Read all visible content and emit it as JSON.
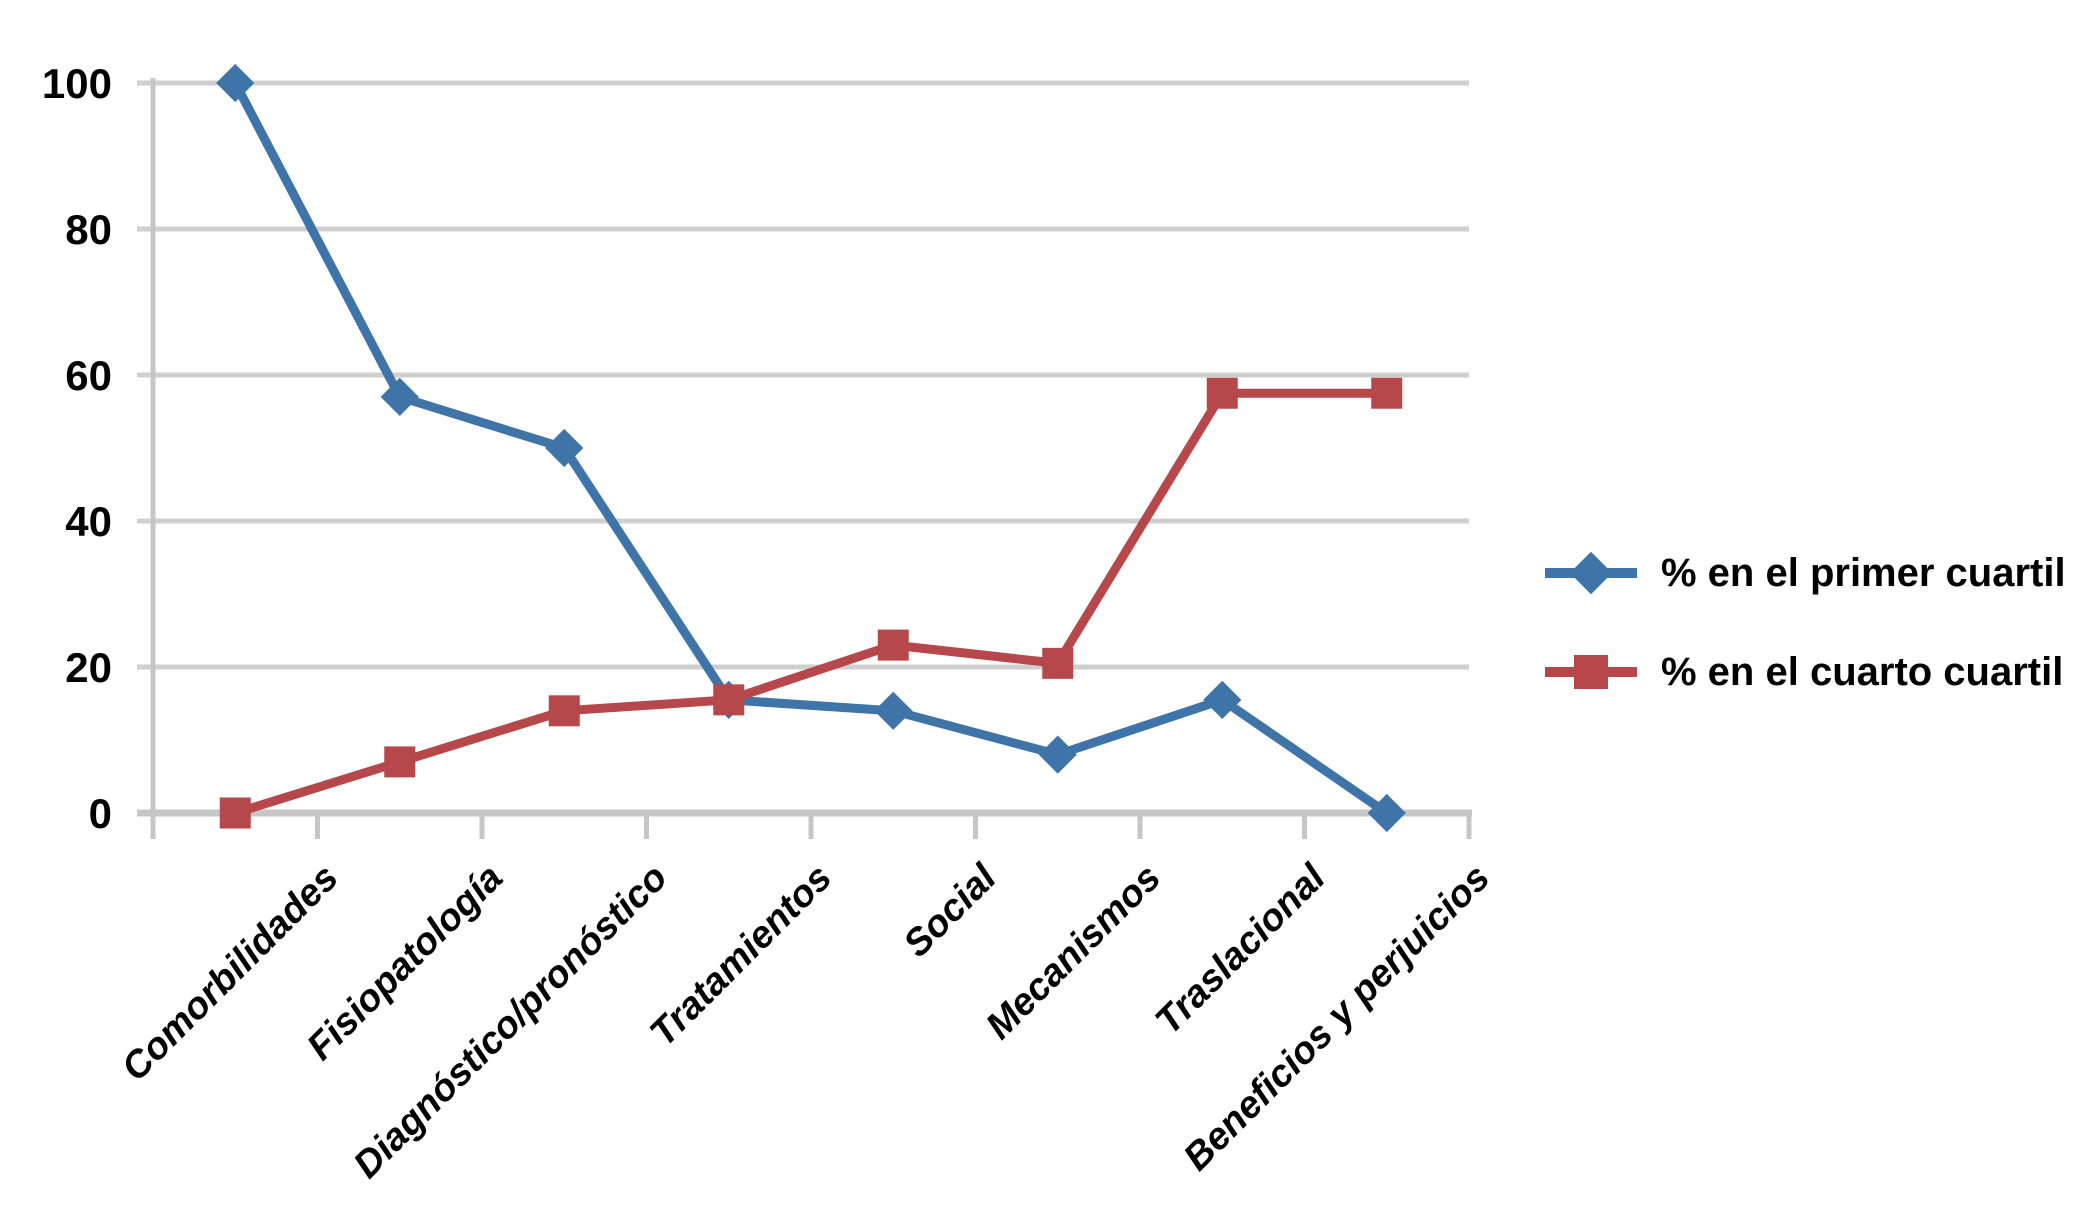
{
  "chart_data": {
    "type": "line",
    "categories": [
      "Comorbilidades",
      "Fisiopatología",
      "Diagnóstico/pronóstico",
      "Tratamientos",
      "Social",
      "Mecanismos",
      "Traslacional",
      "Beneficios y perjuicios"
    ],
    "series": [
      {
        "name": "% en el primer cuartil",
        "color": "#3E74A8",
        "marker": "diamond",
        "values": [
          100,
          57,
          50,
          15.5,
          14,
          8,
          15.5,
          0
        ]
      },
      {
        "name": "% en el cuarto cuartil",
        "color": "#B6484C",
        "marker": "square",
        "values": [
          0,
          7,
          14,
          15.5,
          23,
          20.5,
          57.5,
          57.5
        ]
      }
    ],
    "xlabel": "",
    "ylabel": "",
    "title": "",
    "ylim": [
      0,
      100
    ],
    "yticks": [
      0,
      20,
      40,
      60,
      80,
      100
    ],
    "grid": "horizontal",
    "grid_color": "#CFCFCF",
    "axis_color": "#C6C6C6",
    "text_color": "#000000",
    "legend_position": "right-middle"
  }
}
